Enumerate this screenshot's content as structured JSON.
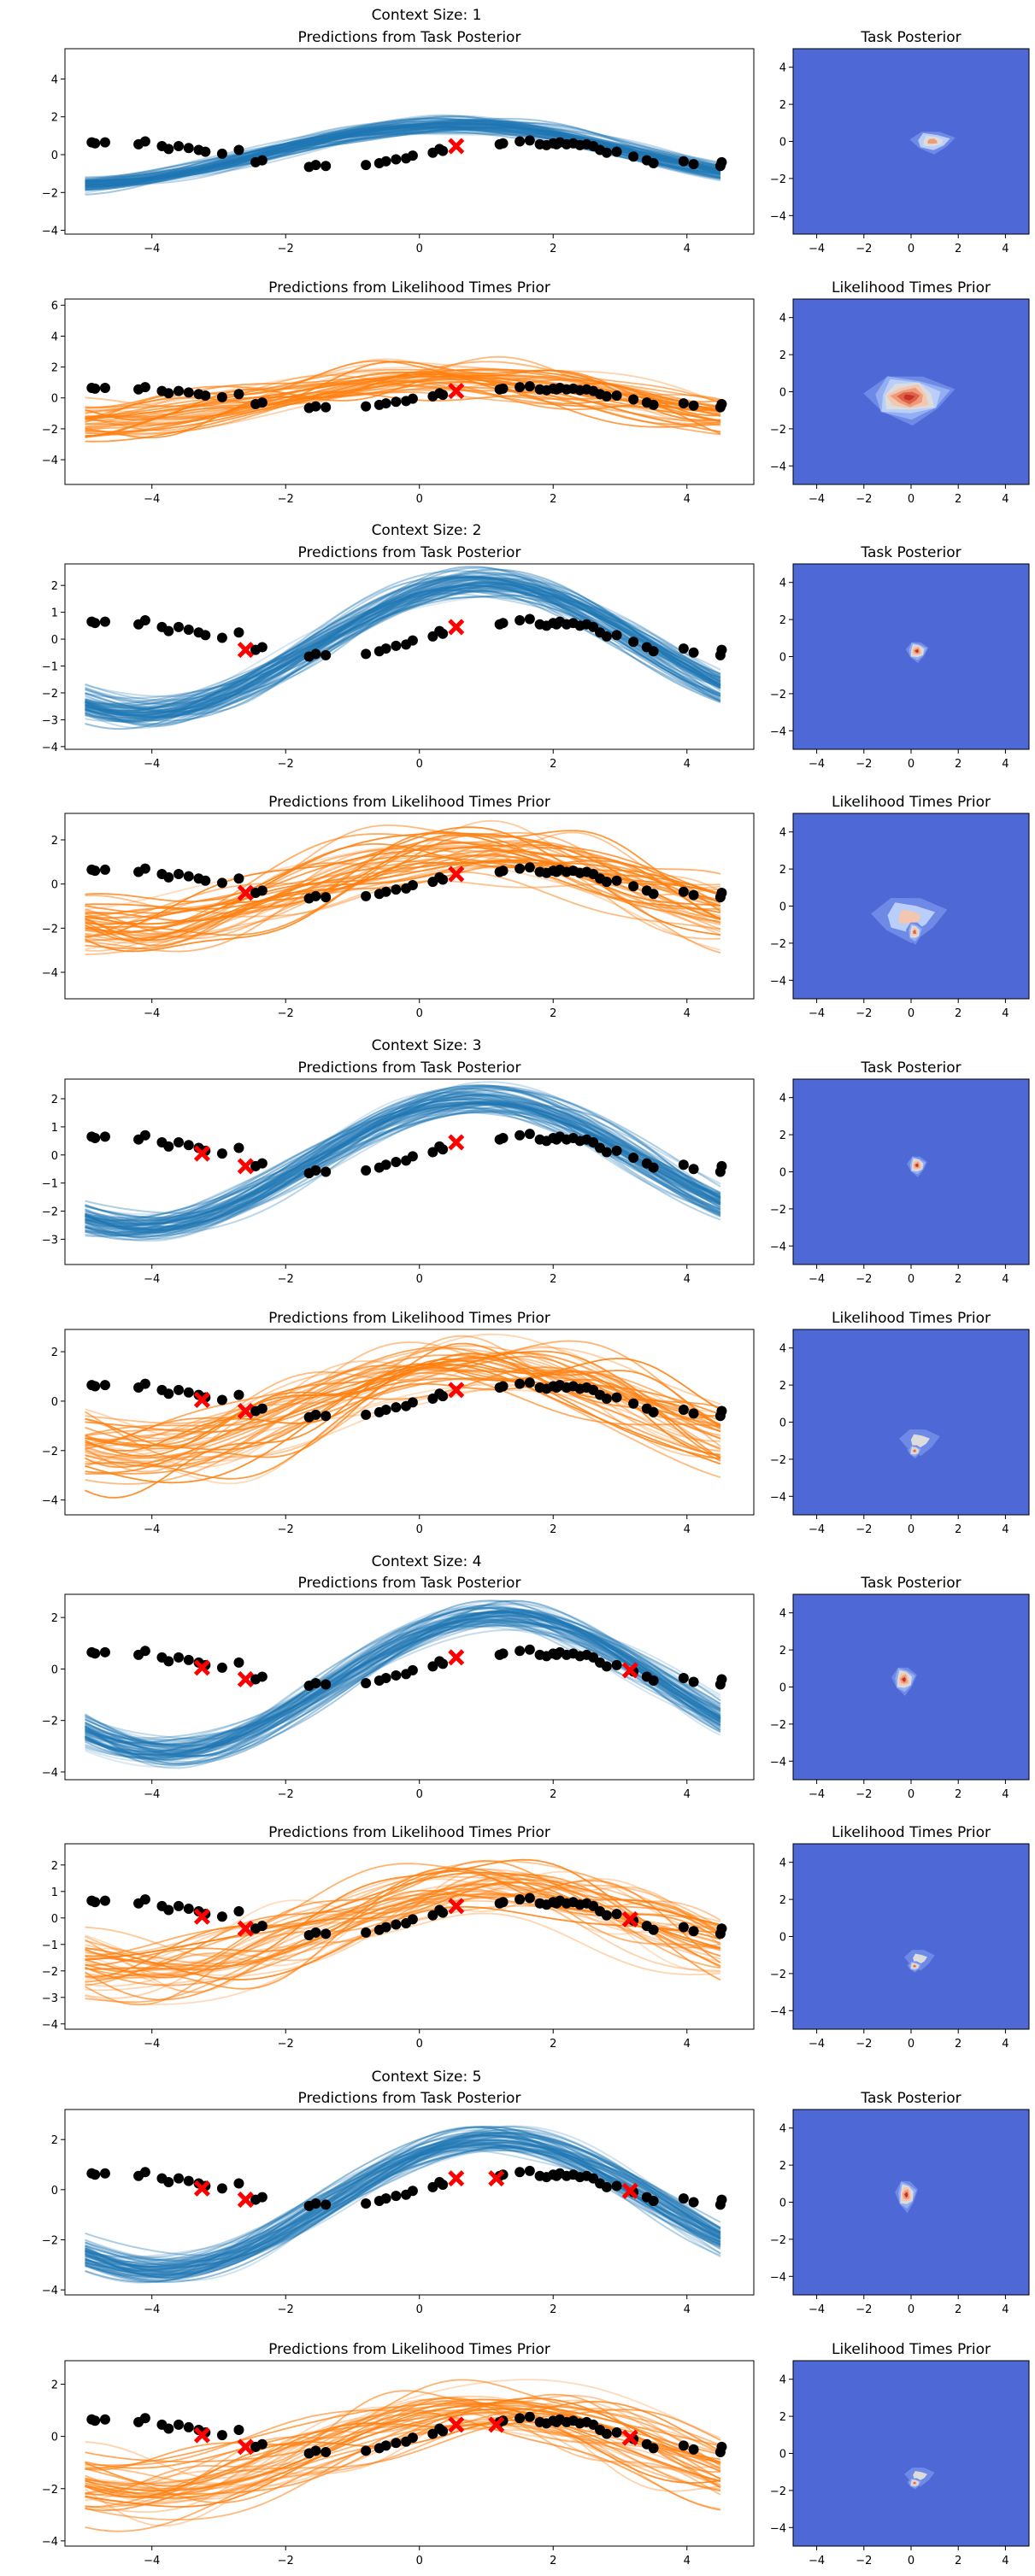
{
  "figure": {
    "supertitles": [
      "Context Size: 1",
      "Context Size: 2",
      "Context Size: 3",
      "Context Size: 4",
      "Context Size: 5"
    ]
  },
  "colors": {
    "posterior_lines": "#1f77b4",
    "prior_lines": "#ff7f0e",
    "points": "#000000",
    "context_markers": "#ff0000",
    "heatmap_background": "#4e69d6",
    "heatmap_levels": [
      "#6f8ae6",
      "#93aef3",
      "#b9cef8",
      "#dddcdc",
      "#f2c6b1",
      "#ee9b7b",
      "#dd6145",
      "#c43229"
    ]
  },
  "chart_data": [
    {
      "type": "line",
      "title": "Predictions from Task Posterior",
      "panel": "posterior",
      "context_size": 1,
      "xlim": [
        -5.3,
        5.0
      ],
      "ylim": [
        -4.2,
        5.6
      ],
      "xticks": [
        -4,
        -2,
        0,
        2,
        4
      ],
      "yticks": [
        -4,
        -2,
        0,
        2,
        4
      ],
      "context_x": [
        0.55
      ],
      "context_y": [
        0.45
      ],
      "line_shape": {
        "amp": 1.6,
        "offset": 0.0,
        "freq": 0.55,
        "phase": -0.28
      }
    },
    {
      "type": "heatmap",
      "title": "Task Posterior",
      "context_size": 1,
      "xlim": [
        -5,
        5
      ],
      "ylim": [
        -5,
        5
      ],
      "xticks": [
        -4,
        -2,
        0,
        2,
        4
      ],
      "yticks": [
        -4,
        -2,
        0,
        2,
        4
      ],
      "blobs": [
        {
          "cx": 0.9,
          "cy": 0.0,
          "sx": 0.9,
          "sy": 0.6,
          "peak": 0.55
        }
      ]
    },
    {
      "type": "line",
      "title": "Predictions from Likelihood Times Prior",
      "panel": "prior",
      "context_size": 1,
      "xlim": [
        -5.3,
        5.0
      ],
      "ylim": [
        -5.6,
        6.4
      ],
      "xticks": [
        -4,
        -2,
        0,
        2,
        4
      ],
      "yticks": [
        -4,
        -2,
        0,
        2,
        4,
        6
      ],
      "context_x": [
        0.55
      ],
      "context_y": [
        0.45
      ],
      "line_shape": {
        "amp": 1.5,
        "offset": -0.2,
        "freq": 0.55,
        "phase": -0.2
      }
    },
    {
      "type": "heatmap",
      "title": "Likelihood Times Prior",
      "context_size": 1,
      "xlim": [
        -5,
        5
      ],
      "ylim": [
        -5,
        5
      ],
      "xticks": [
        -4,
        -2,
        0,
        2,
        4
      ],
      "yticks": [
        -4,
        -2,
        0,
        2,
        4
      ],
      "blobs": [
        {
          "cx": -0.1,
          "cy": -0.3,
          "sx": 1.8,
          "sy": 1.3,
          "peak": 1.0
        }
      ]
    },
    {
      "type": "line",
      "title": "Predictions from Task Posterior",
      "panel": "posterior",
      "context_size": 2,
      "xlim": [
        -5.3,
        5.0
      ],
      "ylim": [
        -4.1,
        2.8
      ],
      "xticks": [
        -4,
        -2,
        0,
        2,
        4
      ],
      "yticks": [
        -4,
        -3,
        -2,
        -1,
        0,
        1,
        2
      ],
      "context_x": [
        -2.6,
        0.55
      ],
      "context_y": [
        -0.4,
        0.45
      ],
      "line_shape": {
        "amp": 2.4,
        "offset": -0.3,
        "freq": 0.62,
        "phase": -0.55
      }
    },
    {
      "type": "heatmap",
      "title": "Task Posterior",
      "context_size": 2,
      "xlim": [
        -5,
        5
      ],
      "ylim": [
        -5,
        5
      ],
      "xticks": [
        -4,
        -2,
        0,
        2,
        4
      ],
      "yticks": [
        -4,
        -2,
        0,
        2,
        4
      ],
      "blobs": [
        {
          "cx": 0.25,
          "cy": 0.3,
          "sx": 0.45,
          "sy": 0.55,
          "peak": 0.75
        }
      ]
    },
    {
      "type": "line",
      "title": "Predictions from Likelihood Times Prior",
      "panel": "prior",
      "context_size": 2,
      "xlim": [
        -5.3,
        5.0
      ],
      "ylim": [
        -5.2,
        3.2
      ],
      "xticks": [
        -4,
        -2,
        0,
        2,
        4
      ],
      "yticks": [
        -4,
        -2,
        0,
        2
      ],
      "context_x": [
        -2.6,
        0.55
      ],
      "context_y": [
        -0.4,
        0.45
      ],
      "line_shape": {
        "amp": 1.8,
        "offset": -0.3,
        "freq": 0.6,
        "phase": -0.5
      }
    },
    {
      "type": "heatmap",
      "title": "Likelihood Times Prior",
      "context_size": 2,
      "xlim": [
        -5,
        5
      ],
      "ylim": [
        -5,
        5
      ],
      "xticks": [
        -4,
        -2,
        0,
        2,
        4
      ],
      "yticks": [
        -4,
        -2,
        0,
        2,
        4
      ],
      "blobs": [
        {
          "cx": -0.1,
          "cy": -0.6,
          "sx": 1.5,
          "sy": 1.2,
          "peak": 0.35
        },
        {
          "cx": 0.15,
          "cy": -1.4,
          "sx": 0.35,
          "sy": 0.6,
          "peak": 0.6
        }
      ]
    },
    {
      "type": "line",
      "title": "Predictions from Task Posterior",
      "panel": "posterior",
      "context_size": 3,
      "xlim": [
        -5.3,
        5.0
      ],
      "ylim": [
        -3.9,
        2.7
      ],
      "xticks": [
        -4,
        -2,
        0,
        2,
        4
      ],
      "yticks": [
        -3,
        -2,
        -1,
        0,
        1,
        2
      ],
      "context_x": [
        -3.25,
        -2.6,
        0.55
      ],
      "context_y": [
        0.05,
        -0.4,
        0.45
      ],
      "line_shape": {
        "amp": 2.3,
        "offset": -0.3,
        "freq": 0.62,
        "phase": -0.55
      }
    },
    {
      "type": "heatmap",
      "title": "Task Posterior",
      "context_size": 3,
      "xlim": [
        -5,
        5
      ],
      "ylim": [
        -5,
        5
      ],
      "xticks": [
        -4,
        -2,
        0,
        2,
        4
      ],
      "yticks": [
        -4,
        -2,
        0,
        2,
        4
      ],
      "blobs": [
        {
          "cx": 0.25,
          "cy": 0.35,
          "sx": 0.4,
          "sy": 0.55,
          "peak": 0.75
        }
      ]
    },
    {
      "type": "line",
      "title": "Predictions from Likelihood Times Prior",
      "panel": "prior",
      "context_size": 3,
      "xlim": [
        -5.3,
        5.0
      ],
      "ylim": [
        -4.6,
        2.9
      ],
      "xticks": [
        -4,
        -2,
        0,
        2,
        4
      ],
      "yticks": [
        -4,
        -2,
        0,
        2
      ],
      "context_x": [
        -3.25,
        -2.6,
        0.55
      ],
      "context_y": [
        0.05,
        -0.4,
        0.45
      ],
      "line_shape": {
        "amp": 1.7,
        "offset": -0.4,
        "freq": 0.6,
        "phase": -0.5
      }
    },
    {
      "type": "heatmap",
      "title": "Likelihood Times Prior",
      "context_size": 3,
      "xlim": [
        -5,
        5
      ],
      "ylim": [
        -5,
        5
      ],
      "xticks": [
        -4,
        -2,
        0,
        2,
        4
      ],
      "yticks": [
        -4,
        -2,
        0,
        2,
        4
      ],
      "blobs": [
        {
          "cx": 0.35,
          "cy": -1.0,
          "sx": 0.8,
          "sy": 0.7,
          "peak": 0.3
        },
        {
          "cx": 0.15,
          "cy": -1.55,
          "sx": 0.3,
          "sy": 0.35,
          "peak": 0.6
        }
      ]
    },
    {
      "type": "line",
      "title": "Predictions from Task Posterior",
      "panel": "posterior",
      "context_size": 4,
      "xlim": [
        -5.3,
        5.0
      ],
      "ylim": [
        -4.3,
        2.9
      ],
      "xticks": [
        -4,
        -2,
        0,
        2,
        4
      ],
      "yticks": [
        -4,
        -2,
        0,
        2
      ],
      "context_x": [
        -3.25,
        -2.6,
        0.55,
        3.15
      ],
      "context_y": [
        0.05,
        -0.4,
        0.45,
        -0.05
      ],
      "line_shape": {
        "amp": 2.6,
        "offset": -0.6,
        "freq": 0.63,
        "phase": -0.75
      }
    },
    {
      "type": "heatmap",
      "title": "Task Posterior",
      "context_size": 4,
      "xlim": [
        -5,
        5
      ],
      "ylim": [
        -5,
        5
      ],
      "xticks": [
        -4,
        -2,
        0,
        2,
        4
      ],
      "yticks": [
        -4,
        -2,
        0,
        2,
        4
      ],
      "blobs": [
        {
          "cx": -0.3,
          "cy": 0.4,
          "sx": 0.5,
          "sy": 0.75,
          "peak": 0.75
        }
      ]
    },
    {
      "type": "line",
      "title": "Predictions from Likelihood Times Prior",
      "panel": "prior",
      "context_size": 4,
      "xlim": [
        -5.3,
        5.0
      ],
      "ylim": [
        -4.2,
        2.8
      ],
      "xticks": [
        -4,
        -2,
        0,
        2,
        4
      ],
      "yticks": [
        -4,
        -3,
        -2,
        -1,
        0,
        1,
        2
      ],
      "context_x": [
        -3.25,
        -2.6,
        0.55,
        3.15
      ],
      "context_y": [
        0.05,
        -0.4,
        0.45,
        -0.05
      ],
      "line_shape": {
        "amp": 1.6,
        "offset": -0.5,
        "freq": 0.6,
        "phase": -0.6
      }
    },
    {
      "type": "heatmap",
      "title": "Likelihood Times Prior",
      "context_size": 4,
      "xlim": [
        -5,
        5
      ],
      "ylim": [
        -5,
        5
      ],
      "xticks": [
        -4,
        -2,
        0,
        2,
        4
      ],
      "yticks": [
        -4,
        -2,
        0,
        2,
        4
      ],
      "blobs": [
        {
          "cx": 0.35,
          "cy": -1.2,
          "sx": 0.6,
          "sy": 0.55,
          "peak": 0.3
        },
        {
          "cx": 0.15,
          "cy": -1.6,
          "sx": 0.3,
          "sy": 0.3,
          "peak": 0.6
        }
      ]
    },
    {
      "type": "line",
      "title": "Predictions from Task Posterior",
      "panel": "posterior",
      "context_size": 5,
      "xlim": [
        -5.3,
        5.0
      ],
      "ylim": [
        -4.2,
        3.2
      ],
      "xticks": [
        -4,
        -2,
        0,
        2,
        4
      ],
      "yticks": [
        -4,
        -2,
        0,
        2
      ],
      "context_x": [
        -3.25,
        -2.6,
        0.55,
        1.15,
        3.15
      ],
      "context_y": [
        0.05,
        -0.4,
        0.45,
        0.45,
        -0.05
      ],
      "line_shape": {
        "amp": 2.6,
        "offset": -0.6,
        "freq": 0.63,
        "phase": -0.7
      }
    },
    {
      "type": "heatmap",
      "title": "Task Posterior",
      "context_size": 5,
      "xlim": [
        -5,
        5
      ],
      "ylim": [
        -5,
        5
      ],
      "xticks": [
        -4,
        -2,
        0,
        2,
        4
      ],
      "yticks": [
        -4,
        -2,
        0,
        2,
        4
      ],
      "blobs": [
        {
          "cx": -0.2,
          "cy": 0.4,
          "sx": 0.45,
          "sy": 0.85,
          "peak": 0.8
        }
      ]
    },
    {
      "type": "line",
      "title": "Predictions from Likelihood Times Prior",
      "panel": "prior",
      "context_size": 5,
      "xlim": [
        -5.3,
        5.0
      ],
      "ylim": [
        -4.2,
        2.9
      ],
      "xticks": [
        -4,
        -2,
        0,
        2,
        4
      ],
      "yticks": [
        -4,
        -2,
        0,
        2
      ],
      "context_x": [
        -3.25,
        -2.6,
        0.55,
        1.15,
        3.15
      ],
      "context_y": [
        0.05,
        -0.4,
        0.45,
        0.45,
        -0.05
      ],
      "line_shape": {
        "amp": 1.6,
        "offset": -0.5,
        "freq": 0.6,
        "phase": -0.6
      }
    },
    {
      "type": "heatmap",
      "title": "Likelihood Times Prior",
      "context_size": 5,
      "xlim": [
        -5,
        5
      ],
      "ylim": [
        -5,
        5
      ],
      "xticks": [
        -4,
        -2,
        0,
        2,
        4
      ],
      "yticks": [
        -4,
        -2,
        0,
        2,
        4
      ],
      "blobs": [
        {
          "cx": 0.35,
          "cy": -1.2,
          "sx": 0.6,
          "sy": 0.5,
          "peak": 0.3
        },
        {
          "cx": 0.15,
          "cy": -1.6,
          "sx": 0.3,
          "sy": 0.3,
          "peak": 0.6
        }
      ]
    }
  ],
  "observed_points": {
    "x": [
      -4.9,
      -4.85,
      -4.7,
      -4.2,
      -4.1,
      -3.85,
      -3.75,
      -3.6,
      -3.45,
      -3.3,
      -3.2,
      -2.95,
      -2.7,
      -2.45,
      -2.35,
      -1.65,
      -1.55,
      -1.4,
      -0.8,
      -0.6,
      -0.5,
      -0.35,
      -0.2,
      -0.1,
      0.2,
      0.3,
      0.35,
      1.2,
      1.25,
      1.5,
      1.65,
      1.8,
      1.9,
      2.0,
      2.05,
      2.1,
      2.2,
      2.3,
      2.4,
      2.5,
      2.6,
      2.7,
      2.8,
      2.95,
      3.2,
      3.4,
      3.5,
      3.95,
      4.1,
      4.5,
      4.52
    ],
    "y": [
      0.65,
      0.6,
      0.65,
      0.55,
      0.7,
      0.45,
      0.3,
      0.45,
      0.35,
      0.25,
      0.15,
      0.05,
      0.25,
      -0.4,
      -0.3,
      -0.65,
      -0.55,
      -0.6,
      -0.55,
      -0.45,
      -0.35,
      -0.25,
      -0.2,
      -0.05,
      0.1,
      0.3,
      0.2,
      0.55,
      0.6,
      0.7,
      0.75,
      0.55,
      0.5,
      0.6,
      0.55,
      0.65,
      0.55,
      0.6,
      0.5,
      0.55,
      0.45,
      0.25,
      0.1,
      0.15,
      -0.1,
      -0.3,
      -0.45,
      -0.35,
      -0.5,
      -0.6,
      -0.4
    ]
  }
}
